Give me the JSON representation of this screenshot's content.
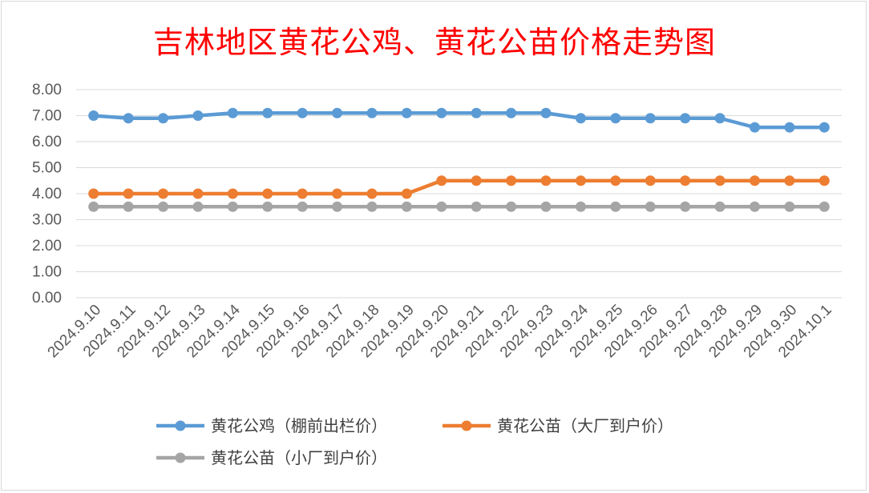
{
  "chart_data": {
    "type": "line",
    "title": "吉林地区黄花公鸡、黄花公苗价格走势图",
    "xlabel": "",
    "ylabel": "",
    "ylim": [
      0,
      8
    ],
    "yticks": [
      "0.00",
      "1.00",
      "2.00",
      "3.00",
      "4.00",
      "5.00",
      "6.00",
      "7.00",
      "8.00"
    ],
    "grid": true,
    "legend": "bottom",
    "categories": [
      "2024.9.10",
      "2024.9.11",
      "2024.9.12",
      "2024.9.13",
      "2024.9.14",
      "2024.9.15",
      "2024.9.16",
      "2024.9.17",
      "2024.9.18",
      "2024.9.19",
      "2024.9.20",
      "2024.9.21",
      "2024.9.22",
      "2024.9.23",
      "2024.9.24",
      "2024.9.25",
      "2024.9.26",
      "2024.9.27",
      "2024.9.28",
      "2024.9.29",
      "2024.9.30",
      "2024.10.1"
    ],
    "series": [
      {
        "name": "黄花公鸡（棚前出栏价）",
        "color": "#5b9bd5",
        "values": [
          7.0,
          6.9,
          6.9,
          7.0,
          7.1,
          7.1,
          7.1,
          7.1,
          7.1,
          7.1,
          7.1,
          7.1,
          7.1,
          7.1,
          6.9,
          6.9,
          6.9,
          6.9,
          6.9,
          6.55,
          6.55,
          6.55
        ]
      },
      {
        "name": "黄花公苗（大厂到户价）",
        "color": "#ed7d31",
        "values": [
          4.0,
          4.0,
          4.0,
          4.0,
          4.0,
          4.0,
          4.0,
          4.0,
          4.0,
          4.0,
          4.5,
          4.5,
          4.5,
          4.5,
          4.5,
          4.5,
          4.5,
          4.5,
          4.5,
          4.5,
          4.5,
          4.5
        ]
      },
      {
        "name": "黄花公苗（小厂到户价）",
        "color": "#a5a5a5",
        "values": [
          3.5,
          3.5,
          3.5,
          3.5,
          3.5,
          3.5,
          3.5,
          3.5,
          3.5,
          3.5,
          3.5,
          3.5,
          3.5,
          3.5,
          3.5,
          3.5,
          3.5,
          3.5,
          3.5,
          3.5,
          3.5,
          3.5
        ]
      }
    ]
  }
}
